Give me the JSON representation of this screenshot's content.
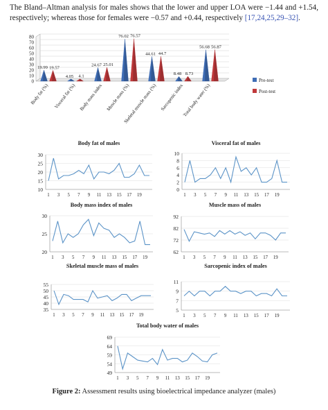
{
  "paragraph": {
    "text": "The Bland–Altman analysis for males shows that the lower and upper LOA were −1.44 and +1.54, respectively; whereas those for females were −0.57 and +0.44, respectively ",
    "refs": "[17,24,25,29–32]",
    "end": "."
  },
  "caption": {
    "label": "Figure 2:",
    "text": " Assessment results using bioelectrical impedance analyzer (males)"
  },
  "colors": {
    "pre": "#3f6db5",
    "post": "#c0393b",
    "line": "#5b93c7"
  },
  "chart_data": [
    {
      "type": "bar",
      "title": "",
      "categories": [
        "Body fat (%)",
        "Visceral fat (%)",
        "Body mass index",
        "Muscle mass (%)",
        "Skeletal muscle mass (%)",
        "Sarcopenic index",
        "Total body water (%)"
      ],
      "series": [
        {
          "name": "Pre-test",
          "values": [
            19.99,
            4.05,
            24.67,
            76.02,
            44.61,
            8.48,
            56.68
          ],
          "labels": [
            "19.99",
            "4.05",
            "24.67",
            "76.02",
            "44.61",
            "8.48",
            "56.68"
          ]
        },
        {
          "name": "Post-test",
          "values": [
            19.57,
            4.1,
            25.01,
            76.57,
            44.7,
            8.73,
            56.87
          ],
          "labels": [
            "19.57",
            "4.1",
            "25.01",
            "76.57",
            "44.7",
            "8.73",
            "56.87"
          ]
        }
      ],
      "ylim": [
        0,
        80
      ],
      "yticks": [
        "0",
        "10",
        "20",
        "30",
        "40",
        "50",
        "60",
        "70",
        "80"
      ],
      "legend": "right"
    },
    {
      "type": "line",
      "title": "Body fat of males",
      "ylim": [
        10,
        30
      ],
      "yticks": [
        "10",
        "15",
        "20",
        "25",
        "30"
      ],
      "xticks": [
        "1",
        "3",
        "5",
        "7",
        "9",
        "11",
        "13",
        "15",
        "17",
        "19"
      ],
      "values": [
        15,
        28,
        16,
        18,
        18,
        19,
        21,
        19,
        24,
        16,
        20,
        20,
        19,
        21,
        25,
        17,
        17,
        19,
        24,
        18,
        18
      ]
    },
    {
      "type": "line",
      "title": "Visceral fat of males",
      "ylim": [
        0,
        10
      ],
      "yticks": [
        "0",
        "2",
        "4",
        "6",
        "8",
        "10"
      ],
      "xticks": [
        "1",
        "3",
        "5",
        "7",
        "9",
        "11",
        "13",
        "15",
        "17",
        "19"
      ],
      "values": [
        2,
        8,
        2,
        3,
        3,
        4,
        6,
        3,
        6,
        2,
        9,
        5,
        6,
        4,
        6,
        2,
        2,
        3,
        8,
        2,
        2
      ]
    },
    {
      "type": "line",
      "title": "Body mass index of males",
      "ylim": [
        20,
        30
      ],
      "yticks": [
        "20",
        "25",
        "30"
      ],
      "xticks": [
        "1",
        "3",
        "5",
        "7",
        "9",
        "11",
        "13",
        "15",
        "17",
        "19"
      ],
      "values": [
        23,
        28.5,
        22.5,
        25,
        24,
        25,
        27.5,
        29,
        24.5,
        28,
        26.5,
        26,
        24,
        25,
        24,
        22.5,
        23,
        28.5,
        22,
        22
      ]
    },
    {
      "type": "line",
      "title": "Muscle mass of males",
      "ylim": [
        62,
        92
      ],
      "yticks": [
        "62",
        "72",
        "82",
        "92"
      ],
      "xticks": [
        "1",
        "3",
        "5",
        "7",
        "9",
        "11",
        "13",
        "15",
        "17",
        "19"
      ],
      "values": [
        81,
        71,
        79,
        78,
        77,
        78,
        75,
        80,
        77,
        80,
        77,
        79,
        76,
        78,
        73,
        78,
        78,
        76,
        72,
        78,
        78
      ]
    },
    {
      "type": "line",
      "title": "Skeletal muscle mass of males",
      "ylim": [
        35,
        55
      ],
      "yticks": [
        "35",
        "40",
        "45",
        "50",
        "55"
      ],
      "xticks": [
        "1",
        "3",
        "5",
        "7",
        "9",
        "11",
        "13",
        "15",
        "17",
        "19"
      ],
      "values": [
        50,
        39,
        47,
        46,
        43,
        43,
        43,
        41,
        50,
        44,
        45,
        46,
        42,
        44,
        47,
        47,
        42,
        44,
        46,
        46,
        46
      ]
    },
    {
      "type": "line",
      "title": "Sarcopenic index of males",
      "ylim": [
        5,
        11
      ],
      "yticks": [
        "5",
        "7",
        "9",
        "11"
      ],
      "xticks": [
        "1",
        "3",
        "5",
        "7",
        "9",
        "11",
        "13",
        "15",
        "17",
        "19"
      ],
      "values": [
        8,
        9,
        8,
        9,
        9,
        8,
        9,
        9,
        10,
        9,
        9,
        8.5,
        9,
        9,
        8,
        8.5,
        8.5,
        8,
        9.5,
        8,
        8
      ]
    },
    {
      "type": "line",
      "title": "Total body water of males",
      "ylim": [
        49,
        69
      ],
      "yticks": [
        "49",
        "54",
        "59",
        "64",
        "69"
      ],
      "xticks": [
        "1",
        "3",
        "5",
        "7",
        "9",
        "11",
        "13",
        "15",
        "17",
        "19"
      ],
      "values": [
        64,
        51,
        60,
        58,
        56,
        55.5,
        55,
        57,
        53.5,
        62,
        56,
        57,
        57,
        55,
        56,
        60,
        58,
        55.5,
        55,
        59,
        60
      ]
    }
  ]
}
